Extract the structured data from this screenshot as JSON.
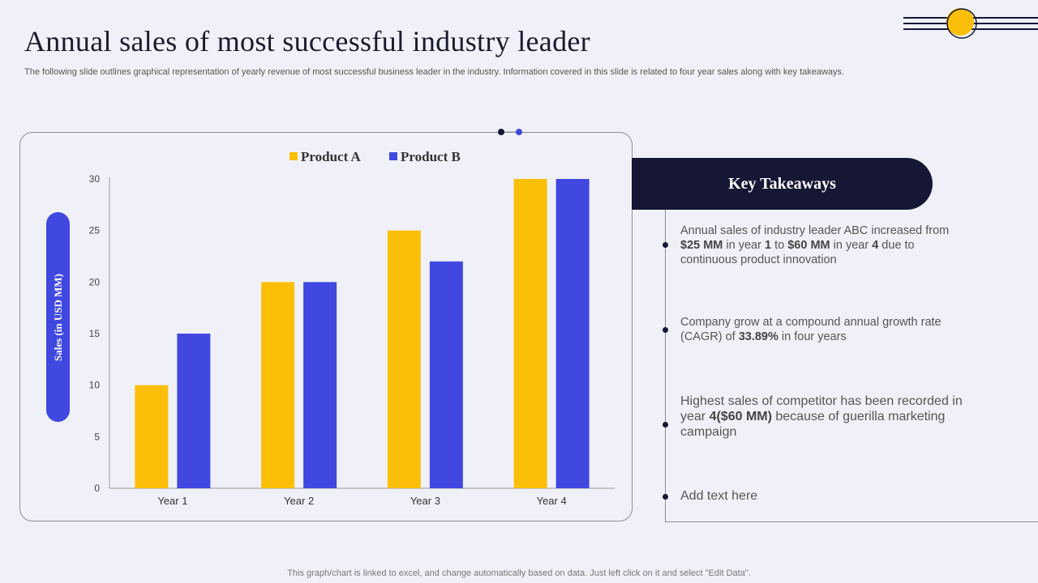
{
  "title": "Annual sales of most successful industry leader",
  "subtitle": "The following slide outlines graphical representation of yearly revenue of most successful business leader in the industry. Information covered in this slide is related to four year sales along with key takeaways.",
  "colors": {
    "product_a": "#fbbf09",
    "product_b": "#4048e0",
    "dark": "#161735",
    "ylabel_pill": "#4048e0"
  },
  "chart_data": {
    "type": "bar",
    "categories": [
      "Year 1",
      "Year 2",
      "Year 3",
      "Year 4"
    ],
    "series": [
      {
        "name": "Product A",
        "values": [
          10,
          20,
          25,
          30
        ]
      },
      {
        "name": "Product B",
        "values": [
          15,
          20,
          22,
          30
        ]
      }
    ],
    "xlabel": "",
    "ylabel": "Sales (in USD MM)",
    "ylim": [
      0,
      30
    ],
    "yticks": [
      0,
      5,
      10,
      15,
      20,
      25,
      30
    ],
    "grid": false,
    "legend": "top-center"
  },
  "takeaways": {
    "title": "Key Takeaways",
    "items": [
      {
        "parts": [
          {
            "t": "Annual sales of industry leader ABC increased from "
          },
          {
            "t": "$25 MM",
            "b": true
          },
          {
            "t": " in year "
          },
          {
            "t": "1",
            "b": true
          },
          {
            "t": " to "
          },
          {
            "t": "$60 MM",
            "b": true
          },
          {
            "t": " in year "
          },
          {
            "t": "4",
            "b": true
          },
          {
            "t": " due to continuous product innovation"
          }
        ]
      },
      {
        "parts": [
          {
            "t": "Company grow at a compound annual growth rate (CAGR) of "
          },
          {
            "t": "33.89%",
            "b": true
          },
          {
            "t": " in four years"
          }
        ]
      },
      {
        "parts": [
          {
            "t": "Highest sales of competitor has been recorded in year "
          },
          {
            "t": "4($60 MM)",
            "b": true
          },
          {
            "t": " because of guerilla marketing campaign"
          }
        ]
      },
      {
        "parts": [
          {
            "t": "Add text here"
          }
        ]
      }
    ]
  },
  "footer": "This graph/chart is linked to excel,  and change automatically based on data. Just left click on it and select \"Edit Data\"."
}
